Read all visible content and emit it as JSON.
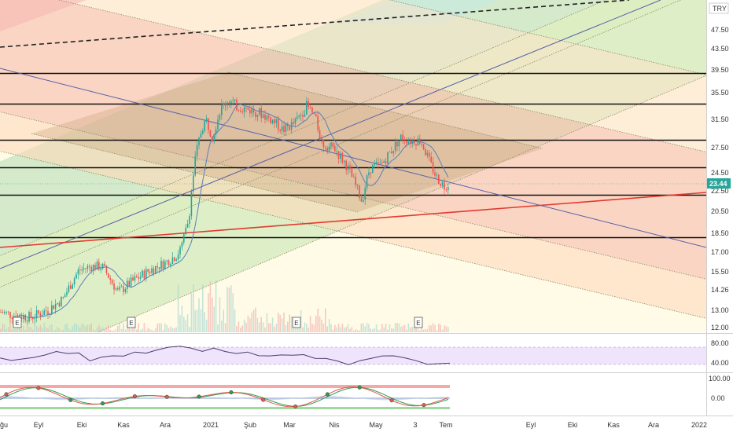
{
  "currency": "TRY",
  "price_axis": {
    "ticks": [
      "47.50",
      "43.50",
      "39.50",
      "35.50",
      "31.50",
      "27.50",
      "24.50",
      "22.50",
      "20.50",
      "18.50",
      "17.00",
      "15.50",
      "14.26",
      "13.00",
      "12.00"
    ],
    "last_price": "23.44",
    "last_price_color": "#26a69a"
  },
  "time_axis": {
    "labels": [
      "ğu",
      "Eyl",
      "Eki",
      "Kas",
      "Ara",
      "2021",
      "Şub",
      "Mar",
      "Nis",
      "May",
      "3",
      "Tem",
      "Eyl",
      "Eki",
      "Kas",
      "Ara",
      "2022"
    ]
  },
  "event_markers": [
    "E",
    "E",
    "E",
    "E"
  ],
  "rsi_pane": {
    "ticks": [
      "80.00",
      "40.00"
    ]
  },
  "stoch_pane": {
    "ticks": [
      "100.00",
      "0.00"
    ]
  },
  "colors": {
    "up": "#26a69a",
    "down": "#ef5350",
    "ma": "#5b7fb8",
    "rsi": "#4a3c6e",
    "rsi_band": "#e9ddf7",
    "k_line": "#e15a4a",
    "d_line": "#2e9d52",
    "level_line": "#111111",
    "support_line": "#e23a2f",
    "trend_line": "#5560a8"
  },
  "chart_data": {
    "type": "candlestick",
    "symbol_currency": "TRY",
    "last_price": 23.44,
    "ylim": [
      12.0,
      49.0
    ],
    "horizontal_levels": [
      39.0,
      33.8,
      28.6,
      25.2,
      22.1,
      18.2
    ],
    "price_path": [
      [
        0,
        12.9
      ],
      [
        20,
        12.7
      ],
      [
        40,
        12.6
      ],
      [
        60,
        13.0
      ],
      [
        80,
        13.7
      ],
      [
        100,
        15.6
      ],
      [
        115,
        15.9
      ],
      [
        130,
        15.9
      ],
      [
        150,
        14.1
      ],
      [
        170,
        14.9
      ],
      [
        190,
        15.6
      ],
      [
        210,
        16.2
      ],
      [
        225,
        16.8
      ],
      [
        232,
        17.6
      ],
      [
        240,
        19.8
      ],
      [
        248,
        26.0
      ],
      [
        256,
        30.0
      ],
      [
        262,
        31.5
      ],
      [
        270,
        29.0
      ],
      [
        280,
        33.0
      ],
      [
        290,
        34.5
      ],
      [
        300,
        33.5
      ],
      [
        315,
        33.0
      ],
      [
        330,
        32.5
      ],
      [
        345,
        31.5
      ],
      [
        360,
        30.0
      ],
      [
        375,
        31.0
      ],
      [
        390,
        33.5
      ],
      [
        400,
        32.0
      ],
      [
        410,
        28.0
      ],
      [
        425,
        27.5
      ],
      [
        440,
        25.5
      ],
      [
        455,
        22.5
      ],
      [
        460,
        21.5
      ],
      [
        470,
        25.0
      ],
      [
        485,
        25.5
      ],
      [
        500,
        27.5
      ],
      [
        510,
        29.0
      ],
      [
        520,
        28.5
      ],
      [
        535,
        28.5
      ],
      [
        545,
        26.0
      ],
      [
        555,
        24.0
      ],
      [
        565,
        23.0
      ],
      [
        572,
        23.44
      ]
    ],
    "rsi": [
      55,
      52,
      50,
      58,
      60,
      70,
      68,
      64,
      50,
      55,
      60,
      62,
      66,
      68,
      72,
      80,
      85,
      75,
      72,
      76,
      70,
      68,
      66,
      62,
      58,
      62,
      64,
      60,
      56,
      52,
      48,
      42,
      46,
      56,
      58,
      60,
      58,
      46,
      42,
      40,
      43
    ],
    "rsi_levels": [
      80,
      40
    ],
    "stoch_ylim": [
      0,
      100
    ]
  }
}
